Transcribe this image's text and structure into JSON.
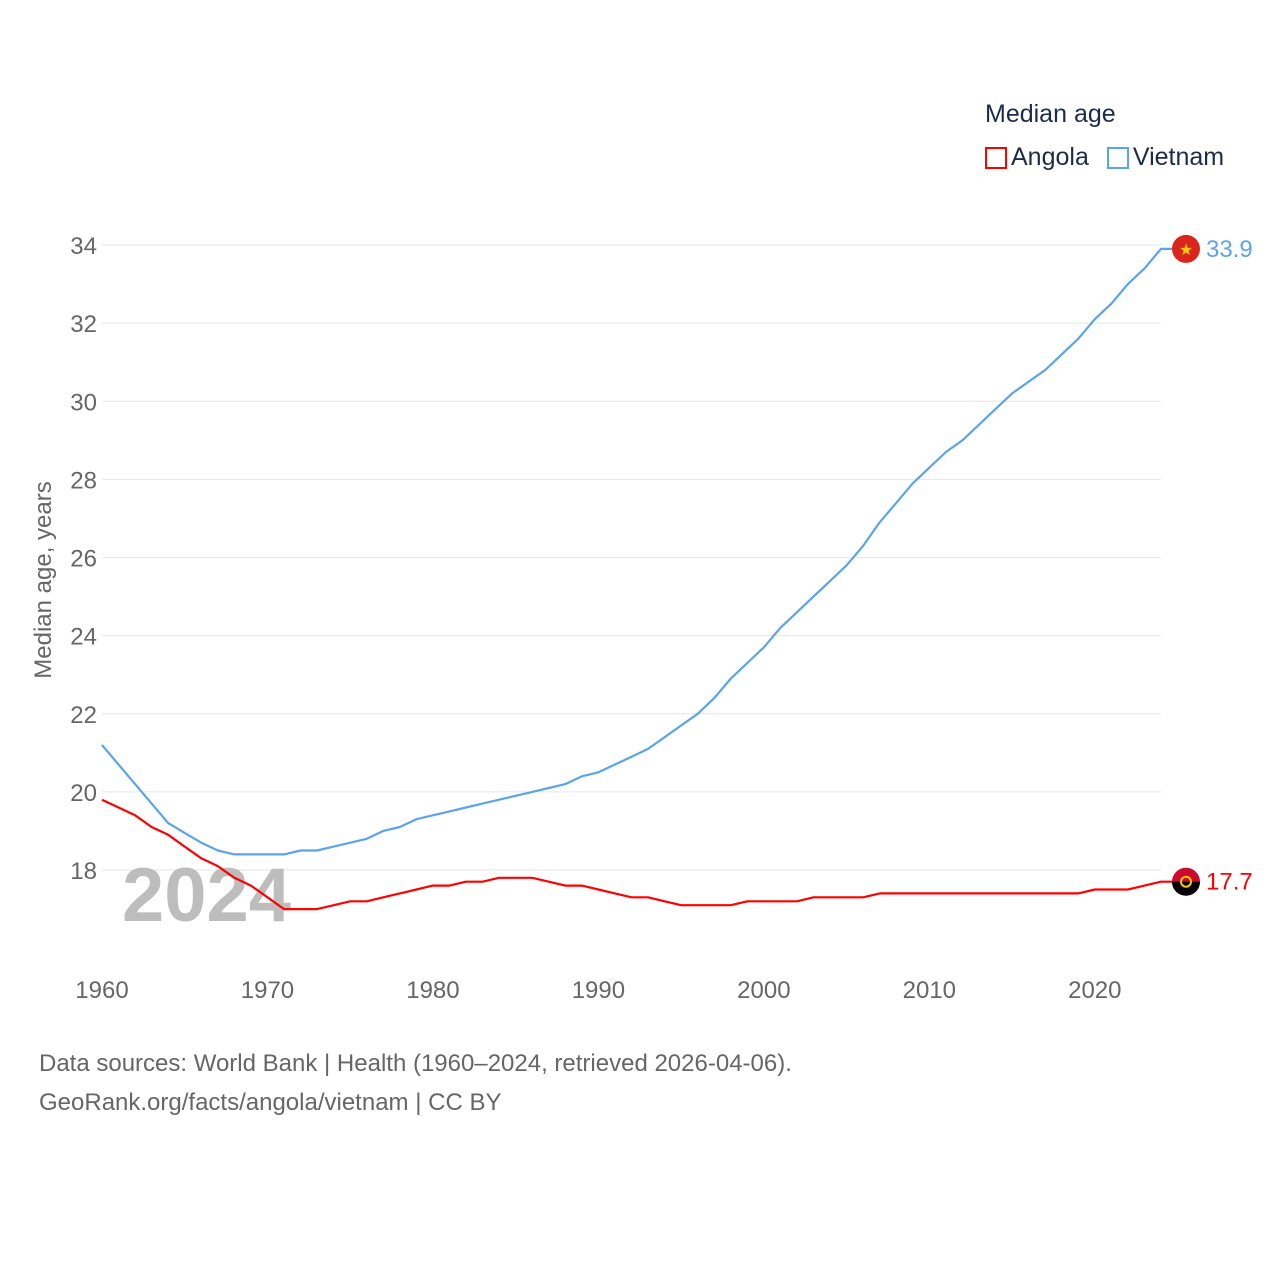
{
  "chart_data": {
    "type": "line",
    "title": "Median age",
    "ylabel": "Median age, years",
    "xlabel": "",
    "ylim": [
      16,
      34
    ],
    "xlim": [
      1960,
      2024
    ],
    "yticks": [
      18,
      20,
      22,
      24,
      26,
      28,
      30,
      32,
      34
    ],
    "xticks": [
      1960,
      1970,
      1980,
      1990,
      2000,
      2010,
      2020
    ],
    "grid": true,
    "legend_placement": "top-right",
    "watermark_year": "2024",
    "x": [
      1960,
      1961,
      1962,
      1963,
      1964,
      1965,
      1966,
      1967,
      1968,
      1969,
      1970,
      1971,
      1972,
      1973,
      1974,
      1975,
      1976,
      1977,
      1978,
      1979,
      1980,
      1981,
      1982,
      1983,
      1984,
      1985,
      1986,
      1987,
      1988,
      1989,
      1990,
      1991,
      1992,
      1993,
      1994,
      1995,
      1996,
      1997,
      1998,
      1999,
      2000,
      2001,
      2002,
      2003,
      2004,
      2005,
      2006,
      2007,
      2008,
      2009,
      2010,
      2011,
      2012,
      2013,
      2014,
      2015,
      2016,
      2017,
      2018,
      2019,
      2020,
      2021,
      2022,
      2023,
      2024
    ],
    "series": [
      {
        "name": "Angola",
        "color": "#ff0000",
        "end_label": "17.7",
        "values": [
          19.8,
          19.6,
          19.4,
          19.1,
          18.9,
          18.6,
          18.3,
          18.1,
          17.8,
          17.6,
          17.3,
          17.0,
          17.0,
          17.0,
          17.1,
          17.2,
          17.2,
          17.3,
          17.4,
          17.5,
          17.6,
          17.6,
          17.7,
          17.7,
          17.8,
          17.8,
          17.8,
          17.7,
          17.6,
          17.6,
          17.5,
          17.4,
          17.3,
          17.3,
          17.2,
          17.1,
          17.1,
          17.1,
          17.1,
          17.2,
          17.2,
          17.2,
          17.2,
          17.3,
          17.3,
          17.3,
          17.3,
          17.4,
          17.4,
          17.4,
          17.4,
          17.4,
          17.4,
          17.4,
          17.4,
          17.4,
          17.4,
          17.4,
          17.4,
          17.4,
          17.5,
          17.5,
          17.5,
          17.6,
          17.7
        ]
      },
      {
        "name": "Vietnam",
        "color": "#5ba4ea",
        "end_label": "33.9",
        "values": [
          21.2,
          20.7,
          20.2,
          19.7,
          19.2,
          18.95,
          18.7,
          18.5,
          18.4,
          18.4,
          18.4,
          18.4,
          18.5,
          18.5,
          18.6,
          18.7,
          18.8,
          19.0,
          19.1,
          19.3,
          19.4,
          19.5,
          19.6,
          19.7,
          19.8,
          19.9,
          20.0,
          20.1,
          20.2,
          20.4,
          20.5,
          20.7,
          20.9,
          21.1,
          21.4,
          21.7,
          22.0,
          22.4,
          22.9,
          23.3,
          23.7,
          24.2,
          24.6,
          25.0,
          25.4,
          25.8,
          26.3,
          26.9,
          27.4,
          27.9,
          28.3,
          28.7,
          29.0,
          29.4,
          29.8,
          30.2,
          30.5,
          30.8,
          31.2,
          31.6,
          32.1,
          32.5,
          33.0,
          33.4,
          33.9
        ]
      }
    ]
  },
  "footer": {
    "line1": "Data sources: World Bank | Health (1960–2024, retrieved 2026-04-06).",
    "line2": "GeoRank.org/facts/angola/vietnam | CC BY"
  }
}
